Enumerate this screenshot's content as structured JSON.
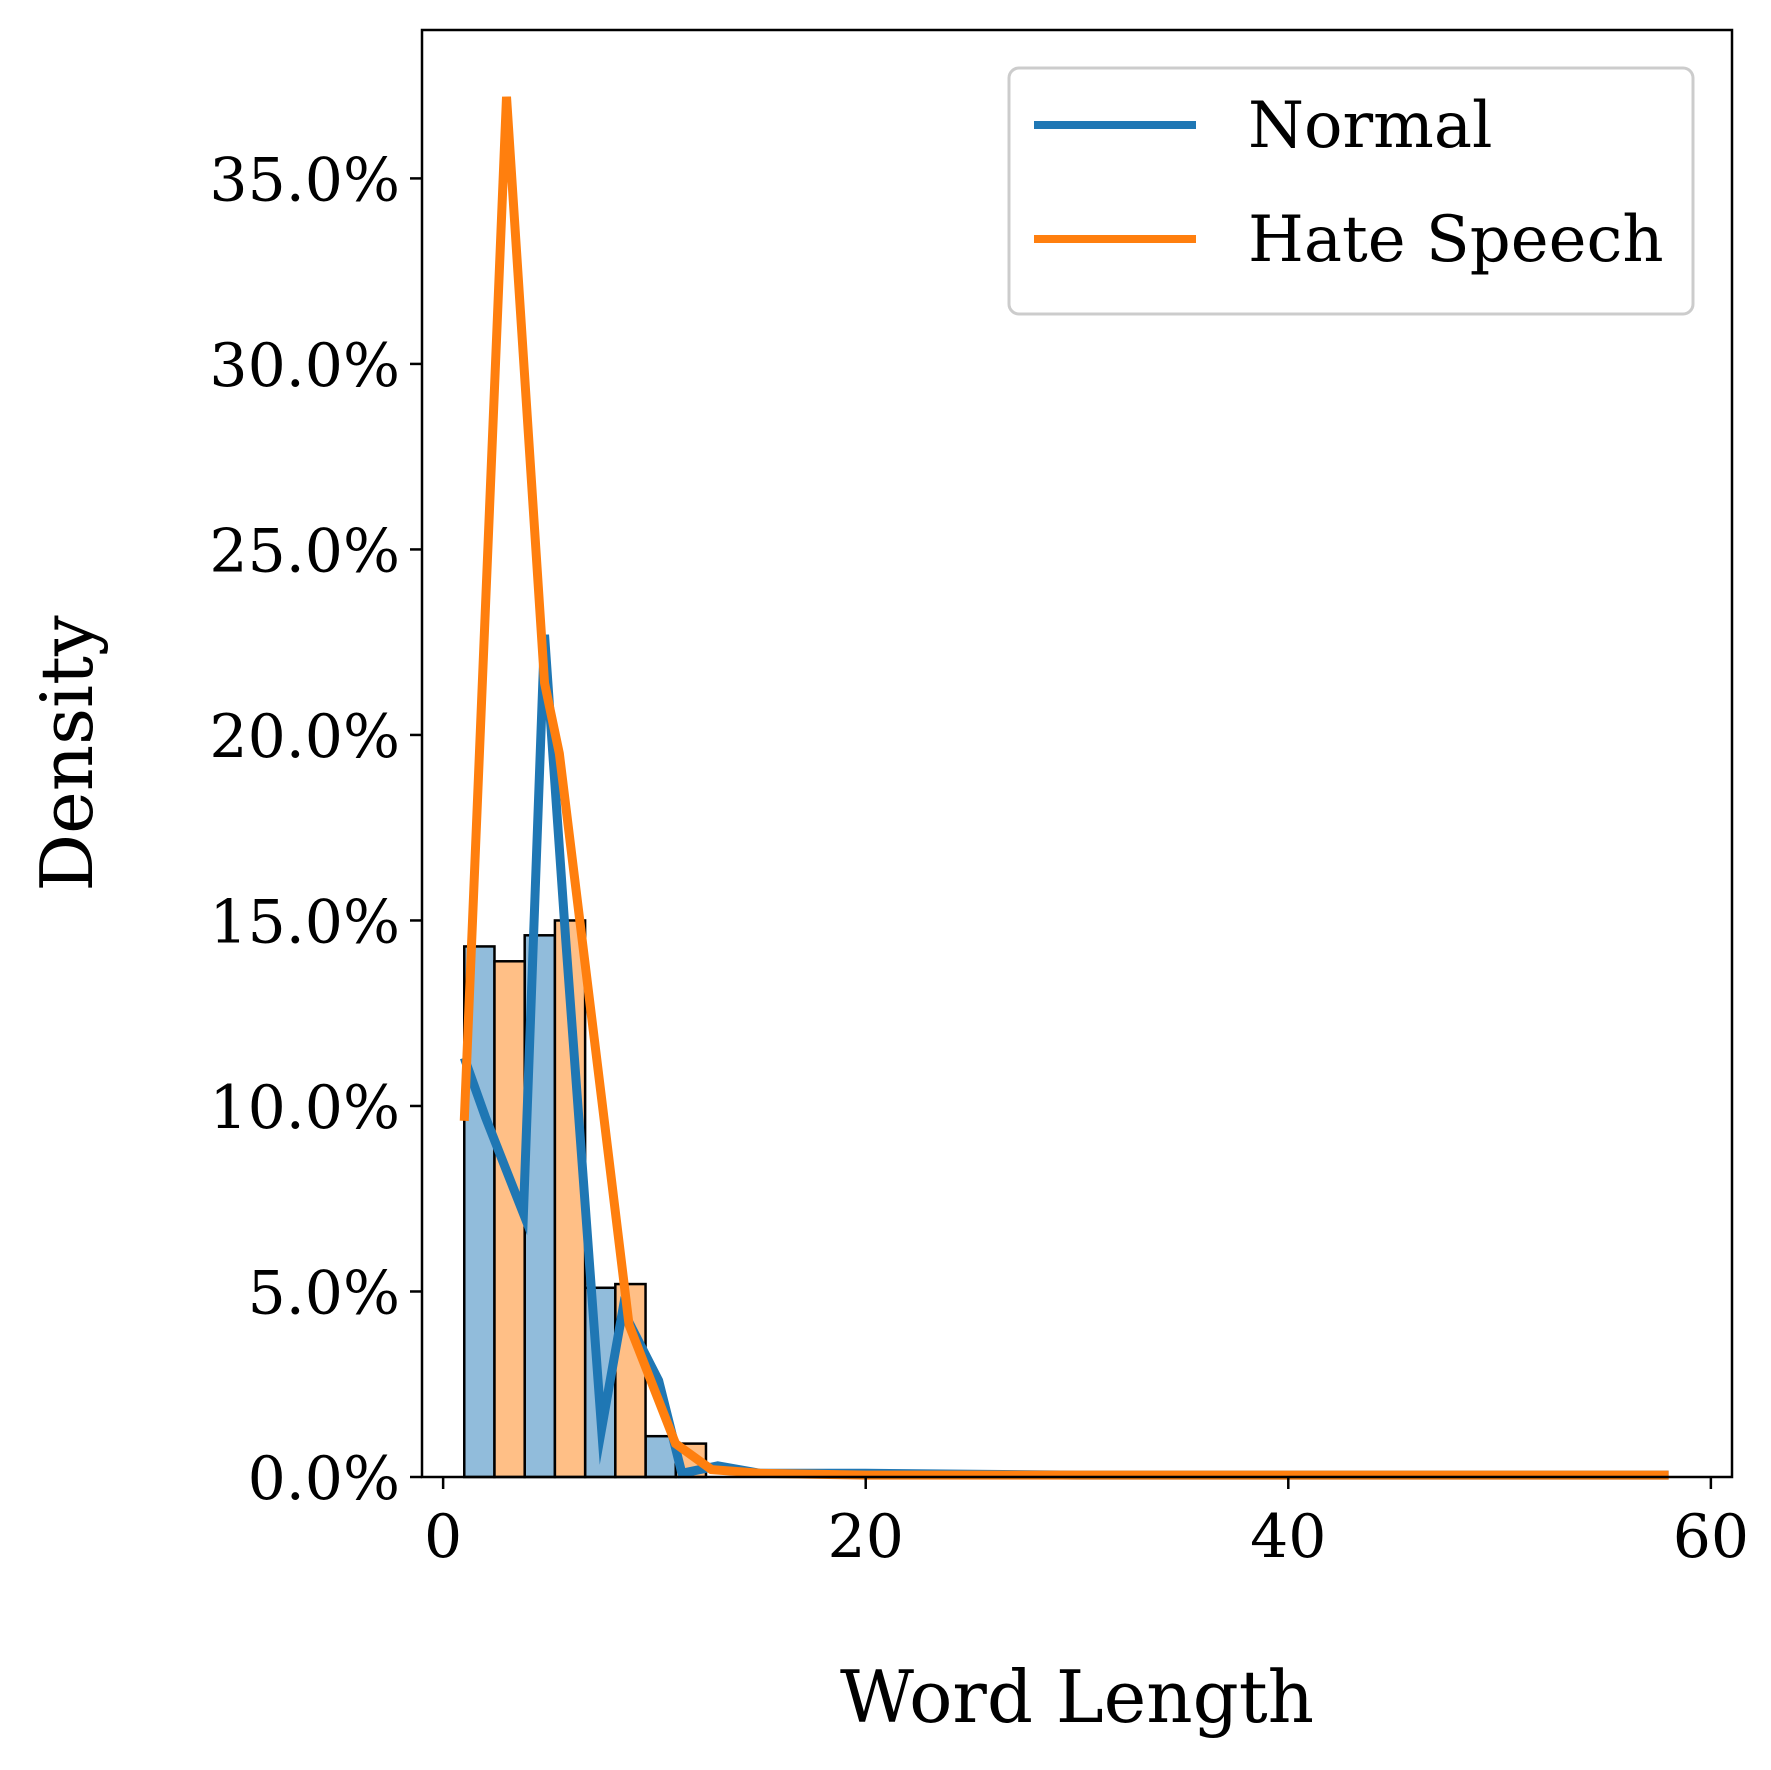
{
  "chart_data": {
    "type": "histogram-with-lines",
    "xlabel": "Word Length",
    "ylabel": "Density",
    "xlim": [
      -1,
      61
    ],
    "ylim": [
      0,
      0.39
    ],
    "xticks": [
      0,
      20,
      40,
      60
    ],
    "xtick_labels": [
      "0",
      "20",
      "40",
      "60"
    ],
    "yticks": [
      0,
      0.05,
      0.1,
      0.15,
      0.2,
      0.25,
      0.3,
      0.35
    ],
    "ytick_labels": [
      "0.0%",
      "5.0%",
      "10.0%",
      "15.0%",
      "20.0%",
      "25.0%",
      "30.0%",
      "35.0%"
    ],
    "grid": false,
    "legend_position": "top-right",
    "bin_width": 1.43,
    "series": [
      {
        "name": "Normal",
        "color": "#1f77b4",
        "bar_fill": "#91bcdb",
        "bins": [
          {
            "x0": 1.0,
            "value": 0.143
          },
          {
            "x0": 3.86,
            "value": 0.146
          },
          {
            "x0": 6.72,
            "value": 0.051
          },
          {
            "x0": 9.58,
            "value": 0.011
          }
        ],
        "line": {
          "x": [
            1.0,
            2.0,
            3.8,
            4.8,
            5.8,
            7.5,
            8.5,
            10.2,
            11.3,
            13.0,
            15.0,
            20.0,
            30.0,
            40.0,
            58.0
          ],
          "y": [
            0.113,
            0.097,
            0.071,
            0.227,
            0.145,
            0.013,
            0.045,
            0.026,
            0.001,
            0.003,
            0.001,
            0.001,
            0.0005,
            0.0005,
            0.0005
          ]
        }
      },
      {
        "name": "Hate Speech",
        "color": "#ff7f0e",
        "bar_fill": "#ffbf86",
        "bins": [
          {
            "x0": 2.43,
            "value": 0.139
          },
          {
            "x0": 5.29,
            "value": 0.15
          },
          {
            "x0": 8.15,
            "value": 0.052
          },
          {
            "x0": 11.01,
            "value": 0.009
          }
        ],
        "line": {
          "x": [
            1.0,
            3.0,
            4.8,
            5.5,
            7.5,
            8.8,
            11.0,
            12.7,
            15.0,
            20.0,
            30.0,
            40.0,
            58.0
          ],
          "y": [
            0.096,
            0.372,
            0.214,
            0.195,
            0.102,
            0.041,
            0.009,
            0.002,
            0.001,
            0.0005,
            0.0005,
            0.0005,
            0.0005
          ]
        }
      }
    ]
  }
}
